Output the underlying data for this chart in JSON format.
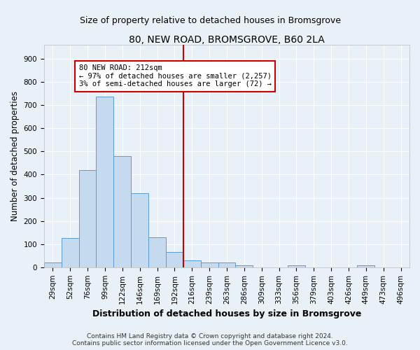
{
  "title": "80, NEW ROAD, BROMSGROVE, B60 2LA",
  "subtitle": "Size of property relative to detached houses in Bromsgrove",
  "xlabel": "Distribution of detached houses by size in Bromsgrove",
  "ylabel": "Number of detached properties",
  "footer_line1": "Contains HM Land Registry data © Crown copyright and database right 2024.",
  "footer_line2": "Contains public sector information licensed under the Open Government Licence v3.0.",
  "bin_labels": [
    "29sqm",
    "52sqm",
    "76sqm",
    "99sqm",
    "122sqm",
    "146sqm",
    "169sqm",
    "192sqm",
    "216sqm",
    "239sqm",
    "263sqm",
    "286sqm",
    "309sqm",
    "333sqm",
    "356sqm",
    "379sqm",
    "403sqm",
    "426sqm",
    "449sqm",
    "473sqm",
    "496sqm"
  ],
  "bar_values": [
    20,
    125,
    420,
    735,
    480,
    320,
    130,
    65,
    30,
    22,
    20,
    8,
    0,
    0,
    8,
    0,
    0,
    0,
    8,
    0,
    0
  ],
  "bar_color": "#c5d9ef",
  "bar_edge_color": "#5b9bd5",
  "vline_color": "#cc0000",
  "vline_bin_index": 8,
  "annotation_text_line1": "80 NEW ROAD: 212sqm",
  "annotation_text_line2": "← 97% of detached houses are smaller (2,257)",
  "annotation_text_line3": "3% of semi-detached houses are larger (72) →",
  "annotation_box_color": "#ffffff",
  "annotation_box_edge": "#cc0000",
  "ylim": [
    0,
    960
  ],
  "yticks": [
    0,
    100,
    200,
    300,
    400,
    500,
    600,
    700,
    800,
    900
  ],
  "background_color": "#e8f0f8",
  "grid_color": "#ffffff",
  "title_fontsize": 10,
  "subtitle_fontsize": 9,
  "xlabel_fontsize": 9,
  "ylabel_fontsize": 8.5,
  "tick_fontsize": 7.5,
  "annotation_fontsize": 7.5,
  "footer_fontsize": 6.5
}
